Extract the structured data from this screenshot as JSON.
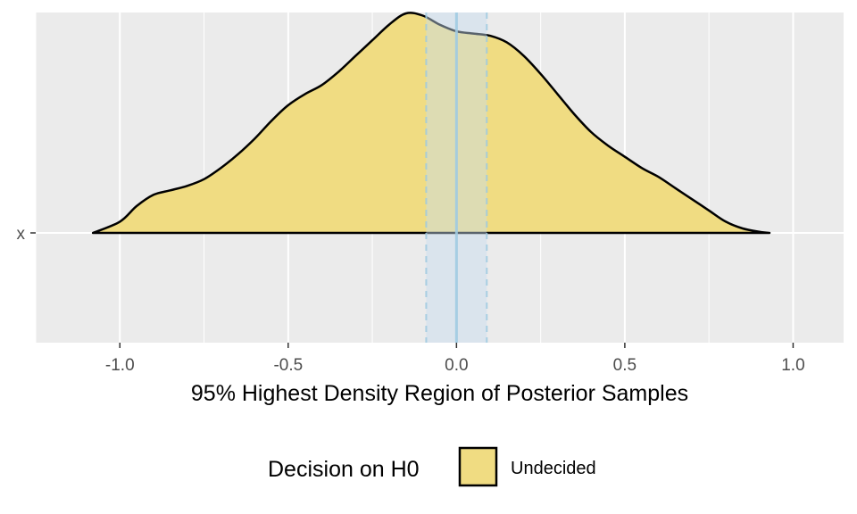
{
  "chart_data": {
    "type": "area",
    "title": "",
    "xlabel": "95% Highest Density Region of Posterior Samples",
    "ylabel": "",
    "xlim": [
      -1.25,
      1.15
    ],
    "x_ticks": [
      -1.0,
      -0.5,
      0.0,
      0.5,
      1.0
    ],
    "x_tick_labels": [
      "-1.0",
      "-0.5",
      "0.0",
      "0.5",
      "1.0"
    ],
    "y_categories": [
      "x"
    ],
    "grid": true,
    "region": {
      "lower": -0.09,
      "upper": 0.09,
      "center": 0.0,
      "fill_color": "#c6dbef",
      "line_color": "#9ecae1"
    },
    "density": {
      "fill_color": "#f0dc82",
      "line_color": "#000000",
      "x": [
        -1.08,
        -1.0,
        -0.95,
        -0.9,
        -0.85,
        -0.8,
        -0.75,
        -0.7,
        -0.65,
        -0.6,
        -0.55,
        -0.5,
        -0.45,
        -0.4,
        -0.35,
        -0.3,
        -0.25,
        -0.2,
        -0.15,
        -0.1,
        -0.05,
        0.0,
        0.05,
        0.1,
        0.15,
        0.2,
        0.25,
        0.3,
        0.35,
        0.4,
        0.45,
        0.5,
        0.55,
        0.6,
        0.65,
        0.7,
        0.75,
        0.8,
        0.85,
        0.9,
        0.93
      ],
      "y": [
        0.0,
        0.05,
        0.12,
        0.17,
        0.19,
        0.21,
        0.24,
        0.29,
        0.35,
        0.42,
        0.5,
        0.57,
        0.62,
        0.66,
        0.72,
        0.79,
        0.86,
        0.93,
        0.98,
        0.97,
        0.93,
        0.9,
        0.89,
        0.88,
        0.85,
        0.79,
        0.71,
        0.62,
        0.53,
        0.45,
        0.39,
        0.34,
        0.29,
        0.25,
        0.2,
        0.15,
        0.1,
        0.05,
        0.02,
        0.005,
        0.0
      ]
    },
    "legend": {
      "title": "Decision on H0",
      "position": "bottom",
      "entries": [
        {
          "label": "Undecided",
          "color": "#f0dc82"
        }
      ]
    }
  }
}
